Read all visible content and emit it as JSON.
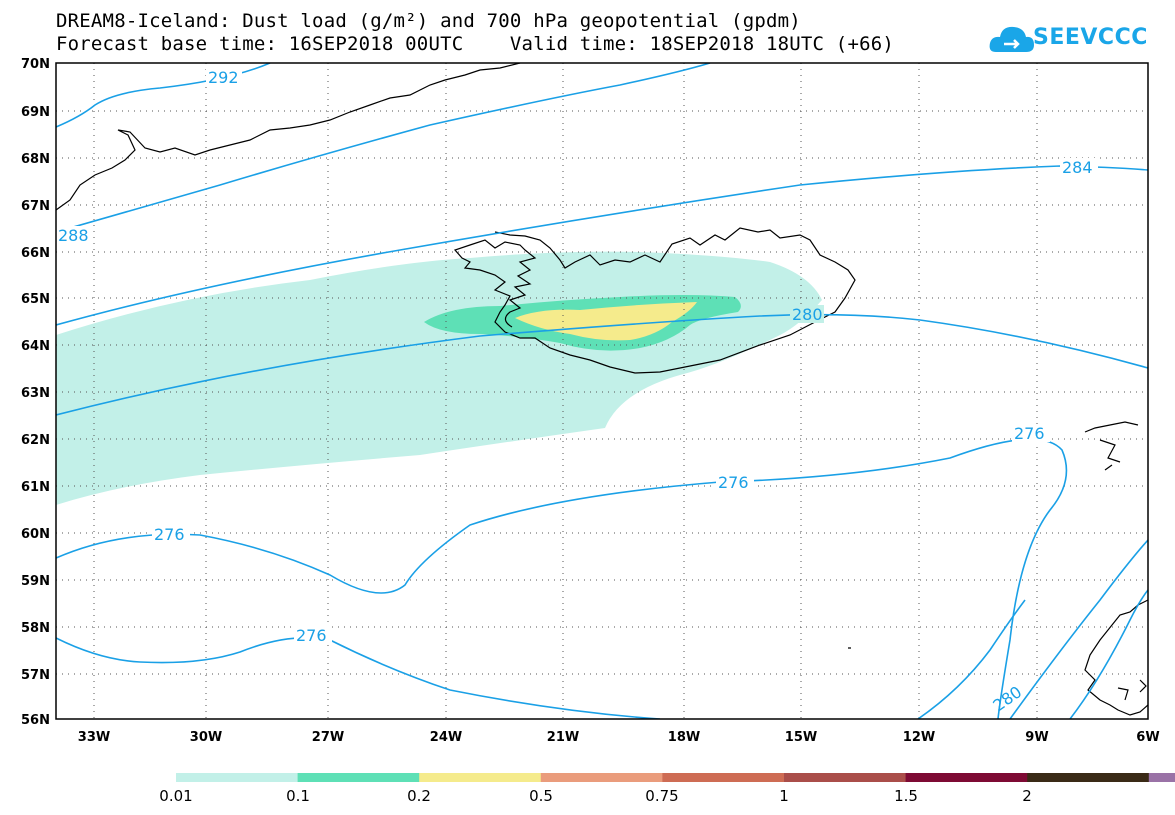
{
  "title": {
    "line1": "DREAM8-Iceland: Dust load (g/m²) and 700 hPa geopotential (gpdm)",
    "line2": "Forecast base time: 16SEP2018 00UTC    Valid time: 18SEP2018 18UTC (+66)"
  },
  "logo": {
    "text": "SEEVCCC",
    "icon": "cloud-icon"
  },
  "map": {
    "lat_labels": [
      "70N",
      "69N",
      "68N",
      "67N",
      "66N",
      "65N",
      "64N",
      "63N",
      "62N",
      "61N",
      "60N",
      "59N",
      "58N",
      "57N",
      "56N"
    ],
    "lon_labels": [
      "33W",
      "30W",
      "27W",
      "24W",
      "21W",
      "18W",
      "15W",
      "12W",
      "9W",
      "6W"
    ],
    "contour_labels": [
      "292",
      "288",
      "284",
      "280",
      "276",
      "276",
      "276",
      "276",
      "280",
      "280"
    ],
    "colors": {
      "contour": "#1aa0e6",
      "coast": "#000000",
      "grid": "#555555"
    }
  },
  "colorbar": {
    "colors": [
      "#c2f0e8",
      "#5ee0b6",
      "#f5eb8c",
      "#ea9c7c",
      "#ce6c54",
      "#aa4e4a",
      "#7e0a34",
      "#3a2a16",
      "#9a72a6"
    ],
    "labels": [
      "0.01",
      "0.1",
      "0.2",
      "0.5",
      "0.75",
      "1",
      "1.5",
      "2"
    ]
  }
}
